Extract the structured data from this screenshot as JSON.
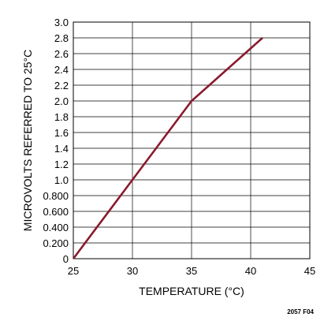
{
  "chart_data": {
    "type": "line",
    "title": "",
    "xlabel": "TEMPERATURE (°C)",
    "ylabel": "MICROVOLTS REFERRED TO 25°C",
    "xlim": [
      25,
      45
    ],
    "ylim": [
      0,
      3.0
    ],
    "x_ticks": [
      "25",
      "30",
      "35",
      "40",
      "45"
    ],
    "y_ticks": [
      "0",
      "0.200",
      "0.400",
      "0.600",
      "0.800",
      "1.0",
      "1.2",
      "1.4",
      "1.6",
      "1.8",
      "2.0",
      "2.2",
      "2.4",
      "2.6",
      "2.8",
      "3.0"
    ],
    "grid": true,
    "series": [
      {
        "x": [
          25,
          30,
          35,
          41
        ],
        "y": [
          0,
          1.0,
          2.0,
          2.8
        ],
        "color": "#8b1a2e"
      }
    ],
    "figure_id": "2057 F04"
  }
}
